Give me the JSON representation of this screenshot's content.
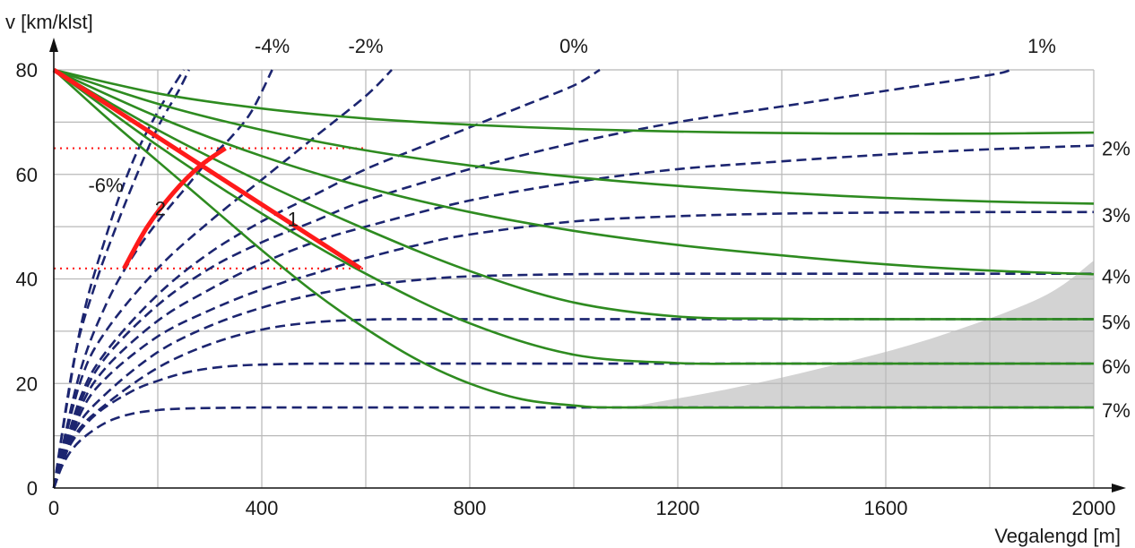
{
  "chart_data": {
    "type": "line",
    "ylabel": "v [km/klst]",
    "xlabel": "Vegalengd [m]",
    "xlim": [
      0,
      2000
    ],
    "ylim": [
      0,
      80
    ],
    "x_ticks": [
      0,
      400,
      800,
      1200,
      1600,
      2000
    ],
    "y_ticks": [
      0,
      20,
      40,
      60,
      80
    ],
    "grid": true,
    "colors": {
      "acceleration": "#1c2570",
      "deceleration": "#2e8b20",
      "example": "#ff1a1a",
      "shaded": "#d3d3d3",
      "grid": "#b8b8b8"
    },
    "acceleration_curves": [
      {
        "label": "",
        "x": [
          0,
          50,
          100,
          150,
          200,
          250
        ],
        "y": [
          0,
          30,
          48,
          62,
          72,
          80
        ]
      },
      {
        "label": "-6%",
        "x": [
          0,
          40,
          80,
          120,
          160,
          200,
          240,
          260
        ],
        "y": [
          0,
          25,
          39,
          50,
          60,
          69,
          76,
          80
        ]
      },
      {
        "label": "-4%",
        "x": [
          0,
          50,
          100,
          150,
          200,
          250,
          300,
          340,
          380,
          420
        ],
        "y": [
          0,
          22,
          35,
          44,
          51,
          57,
          63,
          67,
          72,
          80
        ]
      },
      {
        "label": "-2%",
        "x": [
          0,
          50,
          100,
          200,
          300,
          400,
          500,
          600,
          650
        ],
        "y": [
          0,
          20,
          30,
          42,
          51,
          59,
          67,
          75,
          80
        ]
      },
      {
        "label": "0%",
        "x": [
          0,
          50,
          100,
          200,
          300,
          400,
          500,
          600,
          700,
          800,
          900,
          1000,
          1050
        ],
        "y": [
          0,
          17,
          26,
          37,
          45,
          51,
          56,
          61,
          65,
          69,
          73,
          77,
          80
        ]
      },
      {
        "label": "1%",
        "x": [
          0,
          50,
          100,
          200,
          300,
          400,
          500,
          600,
          800,
          1000,
          1200,
          1400,
          1600,
          1800,
          1840
        ],
        "y": [
          0,
          16,
          25,
          35,
          42,
          47,
          51,
          55,
          61,
          66,
          70,
          73,
          76,
          79,
          80
        ]
      },
      {
        "label": "2%",
        "x": [
          0,
          50,
          100,
          200,
          300,
          400,
          500,
          600,
          800,
          1000,
          1200,
          1400,
          1600,
          1800,
          2000
        ],
        "y": [
          0,
          15,
          23,
          32,
          38,
          43,
          47,
          50,
          55,
          58.5,
          61,
          62.5,
          63.8,
          64.8,
          65.5
        ]
      },
      {
        "label": "3%",
        "x": [
          0,
          50,
          100,
          200,
          300,
          400,
          500,
          600,
          700,
          800,
          1000,
          1200,
          1400,
          1600,
          1800,
          2000
        ],
        "y": [
          0,
          14,
          21,
          29,
          34,
          38,
          41,
          44,
          46.5,
          48.5,
          51,
          52,
          52.5,
          52.7,
          52.8,
          52.8
        ]
      },
      {
        "label": "4%",
        "x": [
          0,
          40,
          100,
          200,
          300,
          400,
          500,
          600,
          700,
          800,
          1000,
          1200,
          1600,
          2000
        ],
        "y": [
          0,
          11,
          18,
          26,
          31,
          34.5,
          37,
          38.7,
          39.8,
          40.5,
          40.9,
          41,
          41,
          41
        ]
      },
      {
        "label": "5%",
        "x": [
          0,
          40,
          100,
          200,
          300,
          400,
          500,
          600,
          700,
          1000,
          1600,
          2000
        ],
        "y": [
          0,
          10,
          16,
          23,
          27.5,
          30.3,
          31.7,
          32.2,
          32.3,
          32.3,
          32.3,
          32.3
        ]
      },
      {
        "label": "6%",
        "x": [
          0,
          30,
          80,
          150,
          200,
          250,
          300,
          350,
          400,
          500,
          700,
          1000,
          1600,
          2000
        ],
        "y": [
          0,
          8,
          14,
          18.5,
          20.5,
          22,
          22.9,
          23.4,
          23.6,
          23.8,
          23.8,
          23.8,
          23.8,
          23.8
        ]
      },
      {
        "label": "7%",
        "x": [
          0,
          20,
          50,
          100,
          150,
          200,
          250,
          300,
          400,
          600,
          1000,
          1600,
          2000
        ],
        "y": [
          0,
          5,
          9,
          12.5,
          14.2,
          14.9,
          15.2,
          15.3,
          15.4,
          15.4,
          15.4,
          15.4,
          15.4
        ]
      }
    ],
    "deceleration_curves": [
      {
        "x": [
          0,
          200,
          400,
          600,
          800,
          1000,
          1200,
          1400,
          1600,
          1800,
          2000
        ],
        "y": [
          80,
          75.5,
          72.6,
          70.7,
          69.5,
          68.7,
          68.2,
          67.9,
          67.8,
          67.8,
          68
        ]
      },
      {
        "x": [
          0,
          200,
          400,
          600,
          800,
          1000,
          1200,
          1400,
          1600,
          1800,
          2000
        ],
        "y": [
          80,
          73.5,
          68.5,
          64.6,
          61.7,
          59.5,
          57.8,
          56.5,
          55.5,
          54.8,
          54.4
        ]
      },
      {
        "x": [
          0,
          200,
          400,
          600,
          800,
          1000,
          1200,
          1400,
          1600,
          1800,
          2000
        ],
        "y": [
          80,
          71,
          63.5,
          57.5,
          52.8,
          49.2,
          46.5,
          44.5,
          42.8,
          41.6,
          40.9
        ]
      },
      {
        "x": [
          0,
          200,
          400,
          600,
          800,
          1000,
          1200,
          1400,
          1600,
          2000
        ],
        "y": [
          80,
          68.5,
          58.5,
          49.5,
          41.5,
          35.5,
          32.8,
          32.4,
          32.3,
          32.3
        ]
      },
      {
        "x": [
          0,
          200,
          400,
          600,
          800,
          1000,
          1200,
          1350,
          1600,
          2000
        ],
        "y": [
          80,
          65.5,
          52.5,
          41,
          31.5,
          25.5,
          23.9,
          23.8,
          23.8,
          23.8
        ]
      },
      {
        "x": [
          0,
          100,
          200,
          300,
          400,
          500,
          600,
          700,
          800,
          900,
          1000,
          1100,
          1600,
          2000
        ],
        "y": [
          80,
          71,
          62.5,
          54,
          45.5,
          37.5,
          30.5,
          24.5,
          20,
          17,
          15.8,
          15.4,
          15.4,
          15.4
        ]
      }
    ],
    "shaded_region": {
      "x": [
        1100,
        1300,
        1500,
        1700,
        1900,
        2000
      ],
      "y_upper": [
        15.4,
        19,
        23.5,
        29,
        36.5,
        43.5
      ]
    },
    "reference_lines": [
      {
        "x": [
          0,
          600
        ],
        "y": [
          65,
          65
        ]
      },
      {
        "x": [
          0,
          600
        ],
        "y": [
          42,
          42
        ]
      }
    ],
    "example_lines": [
      {
        "label": "1",
        "x": [
          0,
          590
        ],
        "y": [
          80,
          42
        ]
      },
      {
        "label": "2",
        "x": [
          135,
          180,
          230,
          280,
          330
        ],
        "y": [
          42,
          50,
          56.5,
          61.5,
          65
        ]
      }
    ],
    "annotations": {
      "top": [
        {
          "text": "-4%",
          "x": 420
        },
        {
          "text": "-2%",
          "x": 600
        },
        {
          "text": "0%",
          "x": 1000
        },
        {
          "text": "1%",
          "x": 1900
        }
      ],
      "right": [
        {
          "text": "2%",
          "y": 65.5
        },
        {
          "text": "3%",
          "y": 52.8
        },
        {
          "text": "4%",
          "y": 41
        },
        {
          "text": "5%",
          "y": 32.3
        },
        {
          "text": "6%",
          "y": 23.8
        },
        {
          "text": "7%",
          "y": 15.4
        }
      ],
      "inside": [
        {
          "text": "-6%",
          "x": 100,
          "y": 58
        },
        {
          "text": "2",
          "x": 205,
          "y": 53.5
        },
        {
          "text": "1",
          "x": 460,
          "y": 51.5
        }
      ]
    }
  }
}
